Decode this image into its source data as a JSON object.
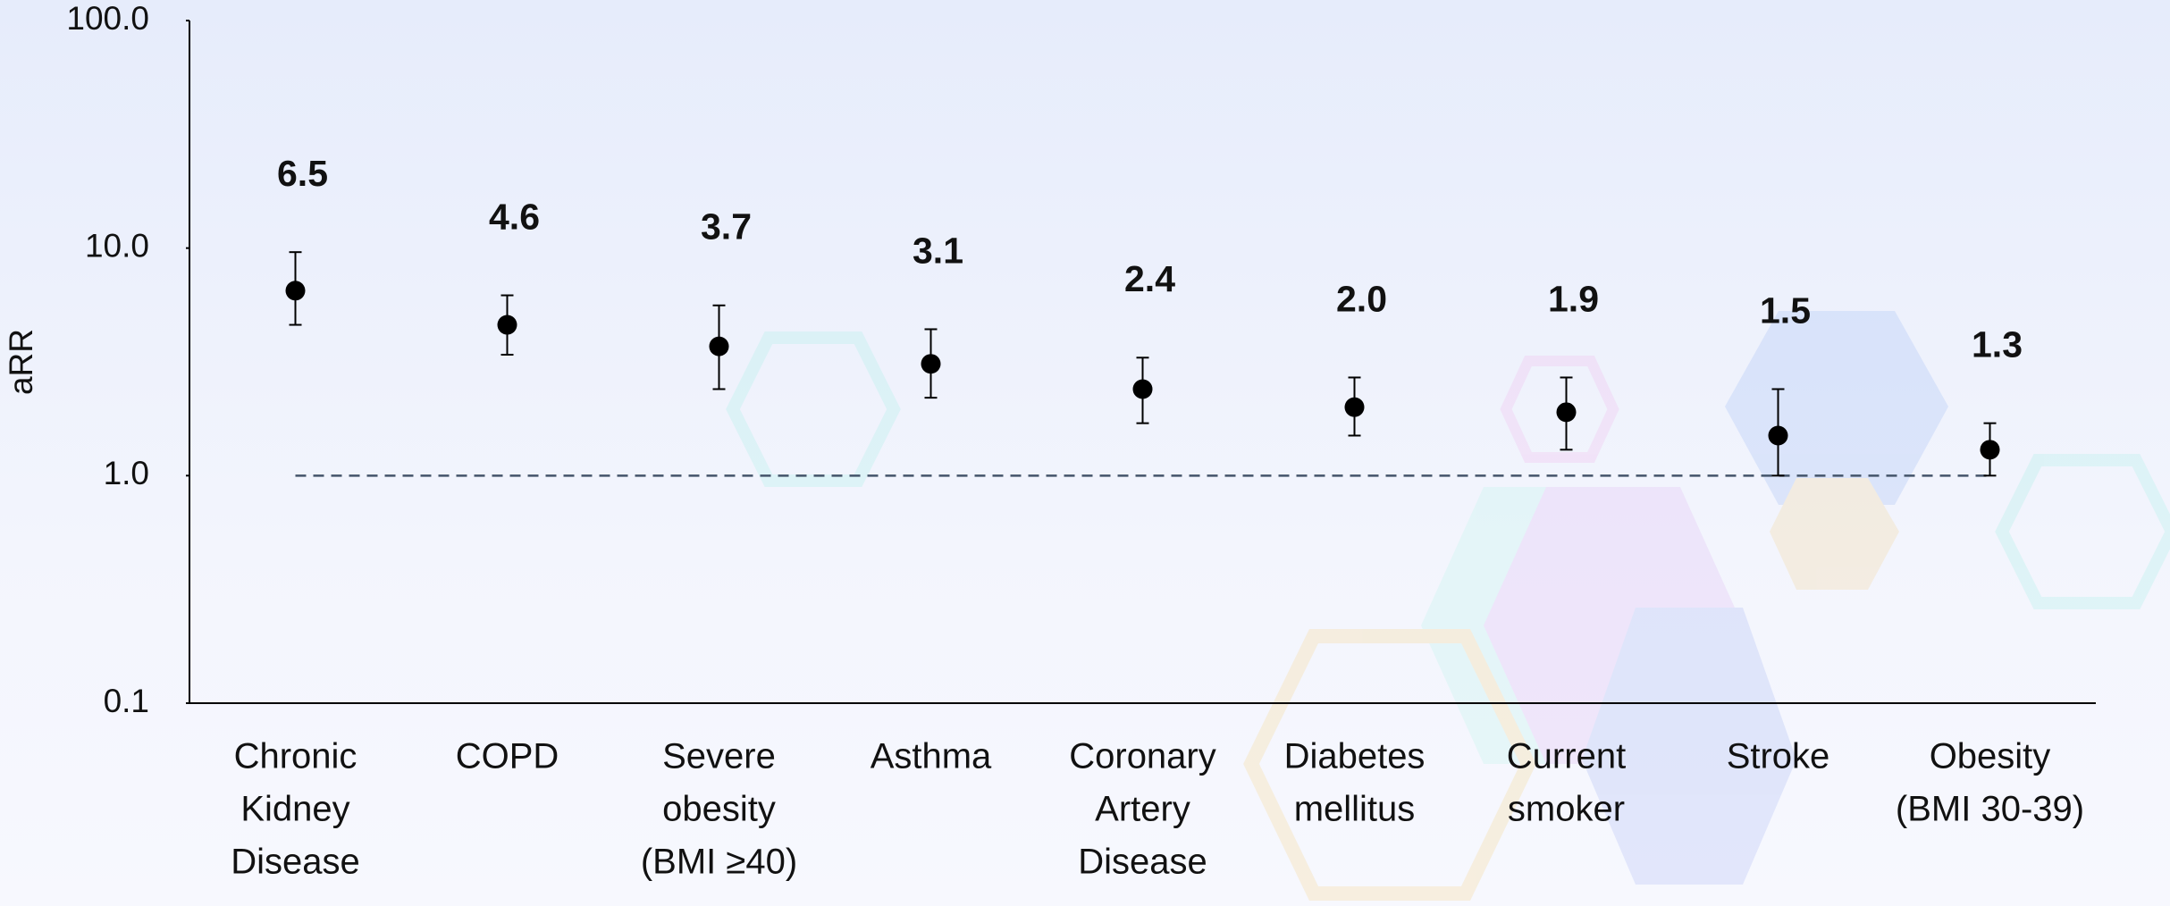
{
  "chart_data": {
    "type": "errorpoint",
    "y_label": "aRR",
    "categories": [
      [
        "Chronic",
        "Kidney",
        "Disease"
      ],
      [
        "COPD"
      ],
      [
        "Severe",
        "obesity",
        "(BMI ≥40)"
      ],
      [
        "Asthma"
      ],
      [
        "Coronary",
        "Artery",
        "Disease"
      ],
      [
        "Diabetes",
        "mellitus"
      ],
      [
        "Current",
        "smoker"
      ],
      [
        "Stroke"
      ],
      [
        "Obesity",
        "(BMI 30-39)"
      ]
    ],
    "values": [
      6.5,
      4.6,
      3.7,
      3.1,
      2.4,
      2.0,
      1.9,
      1.5,
      1.3
    ],
    "value_labels": [
      "6.5",
      "4.6",
      "3.7",
      "3.1",
      "2.4",
      "2.0",
      "1.9",
      "1.5",
      "1.3"
    ],
    "ci_low": [
      4.6,
      3.4,
      2.4,
      2.2,
      1.7,
      1.5,
      1.3,
      1.0,
      1.0
    ],
    "ci_high": [
      9.6,
      6.2,
      5.6,
      4.4,
      3.3,
      2.7,
      2.7,
      2.4,
      1.7
    ],
    "color": "#000000",
    "reference_line": 1,
    "log_y": true,
    "ylim": [
      0.1,
      100
    ],
    "yticks": [
      {
        "value": 0.1,
        "label": "0.1"
      },
      {
        "value": 1,
        "label": "1.0"
      },
      {
        "value": 10,
        "label": "10.0"
      },
      {
        "value": 100,
        "label": "100.0"
      }
    ]
  }
}
